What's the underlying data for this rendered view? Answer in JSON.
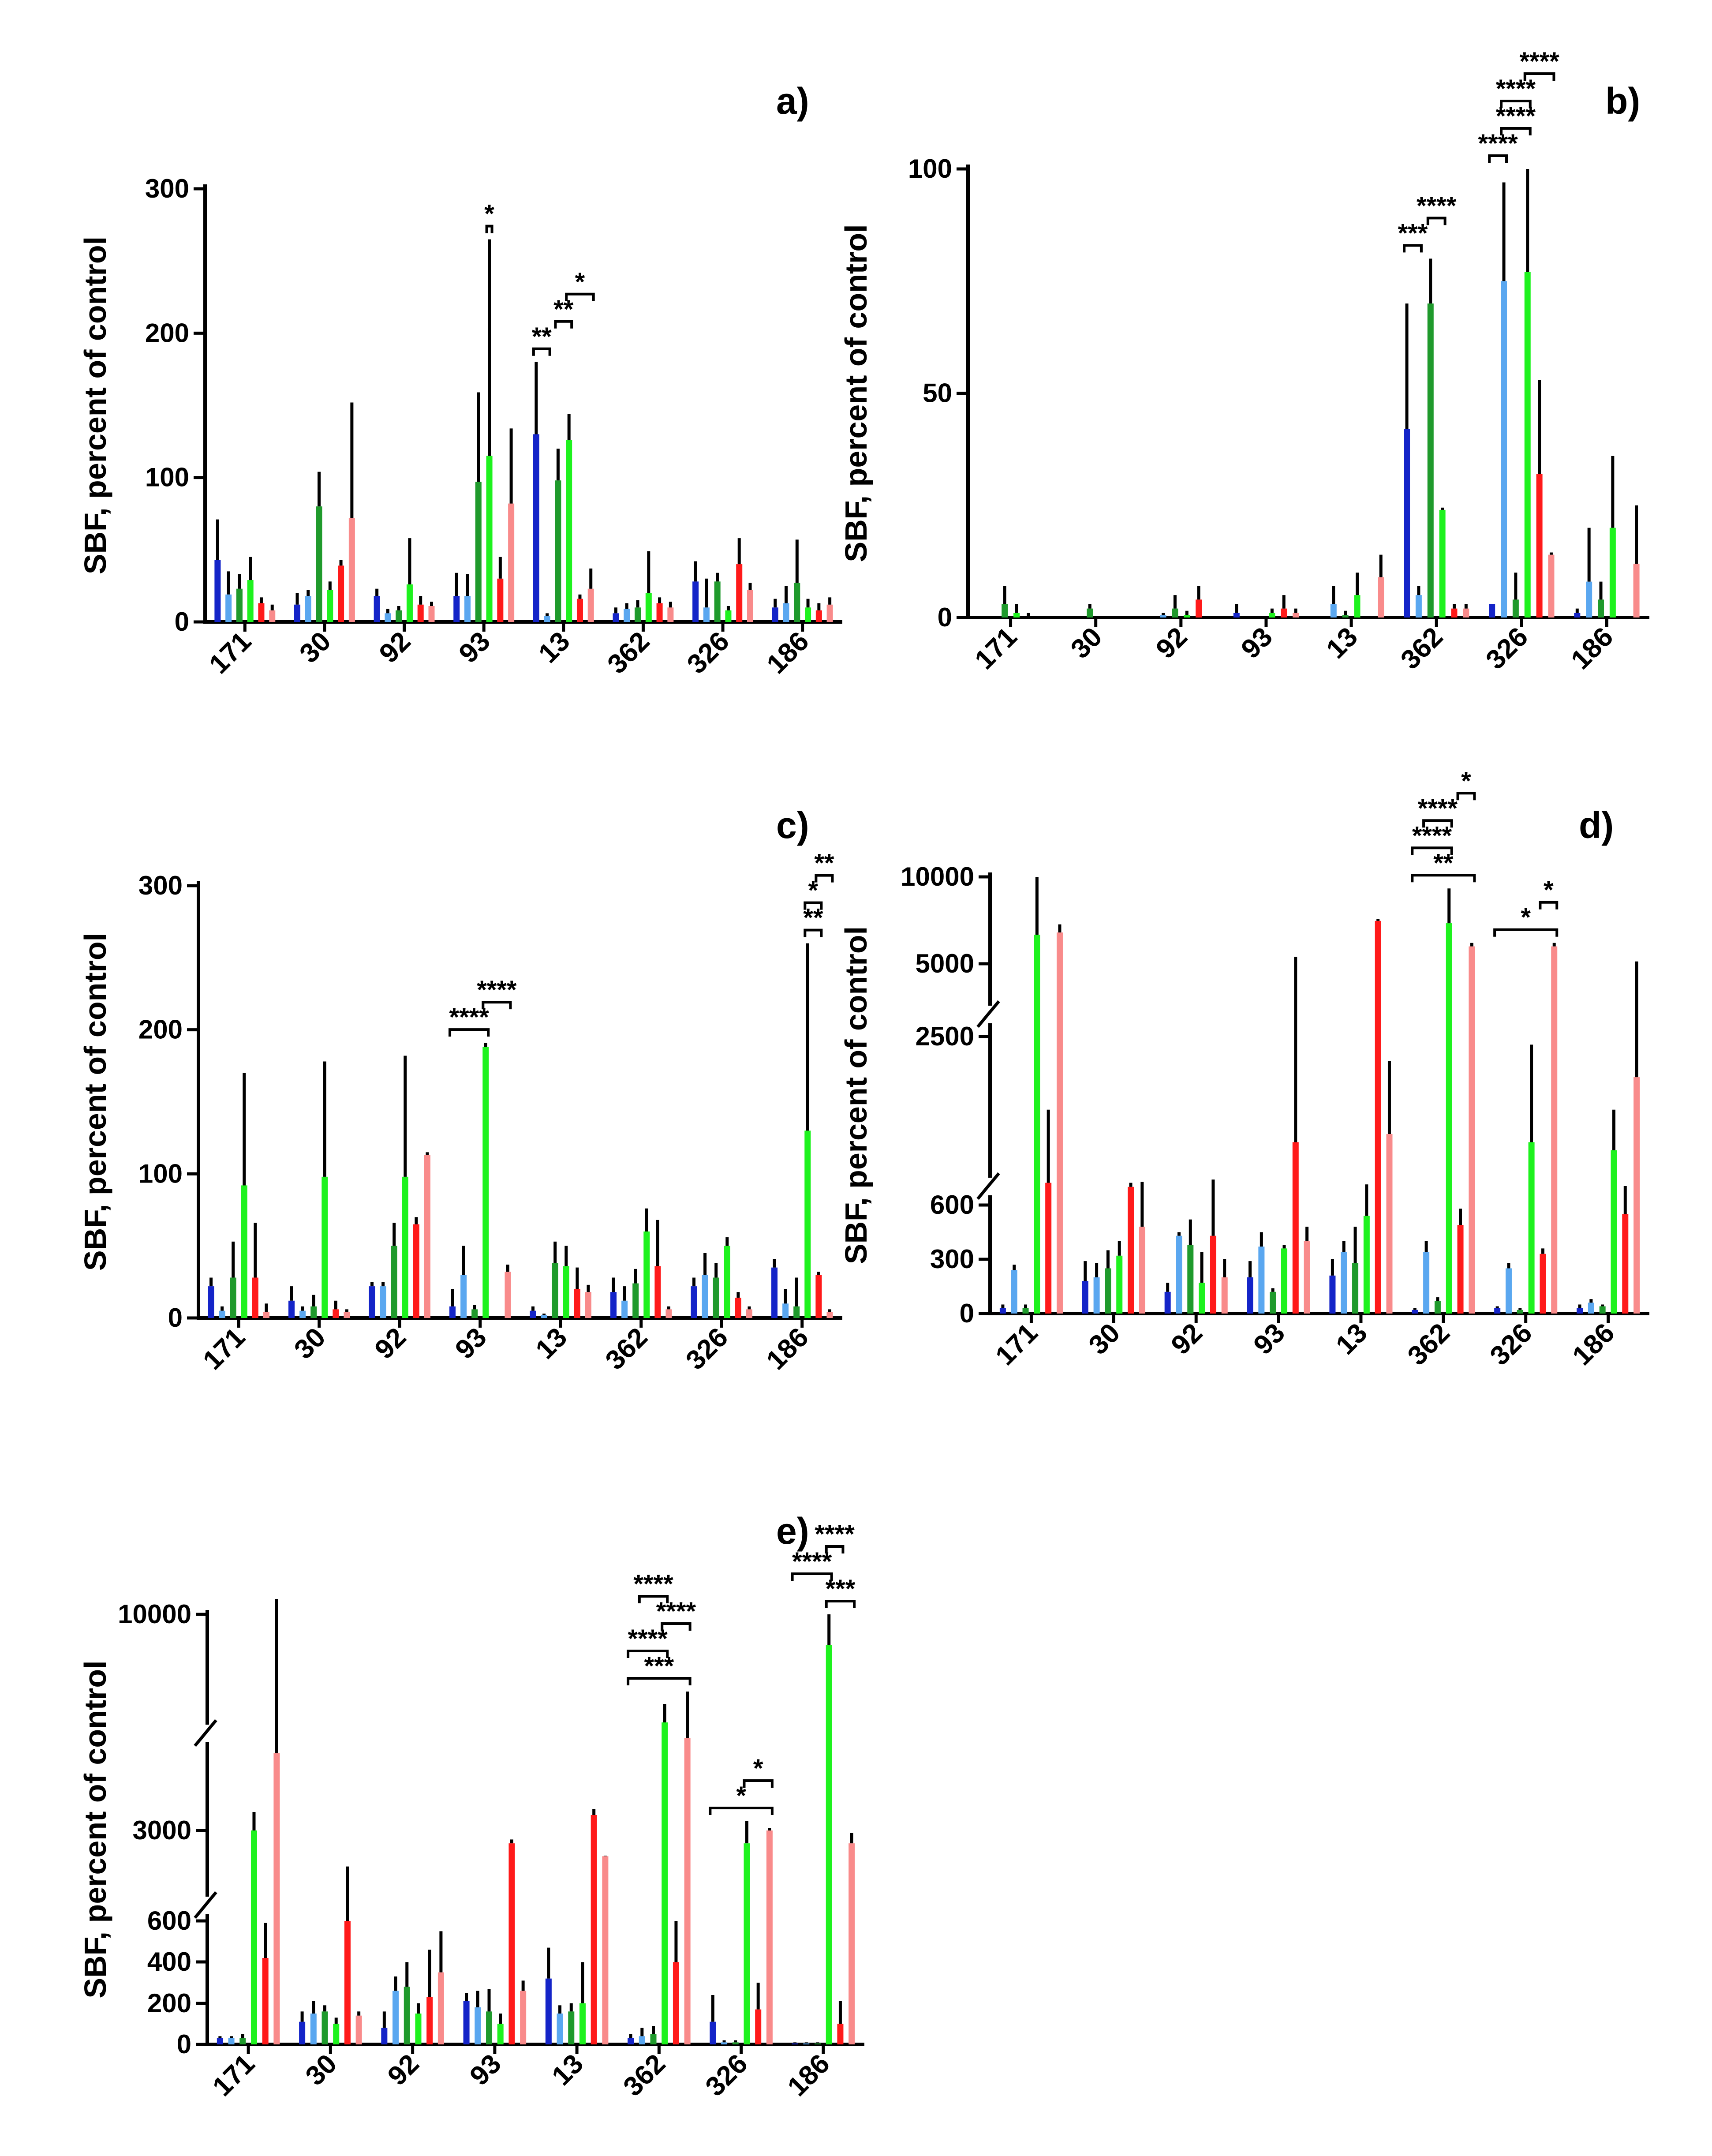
{
  "colors": {
    "dark_blue": "#1424c8",
    "light_blue": "#5aa7f0",
    "dark_green": "#1f9a2c",
    "light_green": "#1ef21e",
    "red": "#ff1a1a",
    "pink": "#f98b8b",
    "error": "#000000"
  },
  "chart_data": [
    {
      "panel": "a)",
      "type": "bar",
      "ylabel": "SBF, percent of control",
      "categories": [
        "171",
        "30",
        "92",
        "93",
        "13",
        "362",
        "326",
        "186"
      ],
      "yticks": [
        "0",
        "100",
        "200",
        "300"
      ],
      "ylim": [
        0,
        300
      ],
      "series": [
        {
          "color": "#1424c8",
          "values": [
            43,
            12,
            18,
            18,
            130,
            6,
            28,
            10
          ],
          "errors": [
            28,
            8,
            5,
            16,
            50,
            4,
            14,
            6
          ]
        },
        {
          "color": "#5aa7f0",
          "values": [
            19,
            18,
            6,
            18,
            4,
            9,
            10,
            13
          ],
          "errors": [
            16,
            4,
            3,
            15,
            2,
            4,
            20,
            12
          ]
        },
        {
          "color": "#1f9a2c",
          "values": [
            23,
            80,
            8,
            97,
            98,
            10,
            28,
            27
          ],
          "errors": [
            10,
            24,
            3,
            62,
            22,
            5,
            6,
            30
          ]
        },
        {
          "color": "#1ef21e",
          "values": [
            29,
            22,
            26,
            115,
            126,
            20,
            8,
            10
          ],
          "errors": [
            16,
            6,
            32,
            150,
            18,
            29,
            3,
            6
          ]
        },
        {
          "color": "#ff1a1a",
          "values": [
            13,
            39,
            12,
            30,
            16,
            13,
            40,
            8
          ],
          "errors": [
            4,
            4,
            6,
            15,
            3,
            4,
            18,
            5
          ]
        },
        {
          "color": "#f98b8b",
          "values": [
            8,
            72,
            11,
            82,
            23,
            10,
            22,
            12
          ],
          "errors": [
            4,
            80,
            3,
            52,
            14,
            4,
            5,
            5
          ]
        }
      ],
      "significance": [
        {
          "label": "*",
          "group": 3,
          "from": 3,
          "to": 3
        },
        {
          "label": "**",
          "group": 4,
          "from": 0,
          "to": 1
        },
        {
          "label": "**",
          "group": 4,
          "from": 2,
          "to": 3
        },
        {
          "label": "*",
          "group": 4,
          "from": 3,
          "to": 5
        }
      ]
    },
    {
      "panel": "b)",
      "type": "bar",
      "ylabel": "SBF, percent of control",
      "categories": [
        "171",
        "30",
        "92",
        "93",
        "13",
        "362",
        "326",
        "186"
      ],
      "yticks": [
        "0",
        "50",
        "100"
      ],
      "ylim": [
        0,
        100
      ],
      "series": [
        {
          "color": "#1424c8",
          "values": [
            0,
            0,
            0,
            1,
            0,
            42,
            3,
            1
          ],
          "errors": [
            0,
            0,
            0,
            2,
            0,
            28,
            0,
            1
          ]
        },
        {
          "color": "#5aa7f0",
          "values": [
            0,
            0,
            0.5,
            0,
            3,
            5,
            75,
            8
          ],
          "errors": [
            0,
            0,
            0.5,
            0,
            4,
            2,
            22,
            12
          ]
        },
        {
          "color": "#1f9a2c",
          "values": [
            3,
            2,
            2,
            0,
            0.5,
            70,
            4,
            4
          ],
          "errors": [
            4,
            1,
            3,
            0,
            1,
            10,
            6,
            4
          ]
        },
        {
          "color": "#1ef21e",
          "values": [
            1,
            0,
            0.5,
            1,
            5,
            24,
            77,
            20
          ],
          "errors": [
            2,
            0,
            1,
            1,
            5,
            0.5,
            23,
            16
          ]
        },
        {
          "color": "#ff1a1a",
          "values": [
            0,
            0,
            4,
            2,
            0,
            2,
            32,
            0
          ],
          "errors": [
            1,
            0,
            3,
            3,
            0,
            1,
            21,
            0
          ]
        },
        {
          "color": "#f98b8b",
          "values": [
            0,
            0,
            0,
            1,
            9,
            2,
            14,
            12
          ],
          "errors": [
            0,
            0,
            0,
            1,
            5,
            1,
            0.5,
            13
          ]
        }
      ],
      "significance": [
        {
          "label": "***",
          "group": 5,
          "from": 0,
          "to": 1
        },
        {
          "label": "****",
          "group": 5,
          "from": 2,
          "to": 3
        },
        {
          "label": "****",
          "group": 6,
          "from": 0,
          "to": 1
        },
        {
          "label": "****",
          "group": 6,
          "from": 1,
          "to": 3
        },
        {
          "label": "****",
          "group": 6,
          "from": 1,
          "to": 3
        },
        {
          "label": "****",
          "group": 6,
          "from": 3,
          "to": 5
        }
      ]
    },
    {
      "panel": "c)",
      "type": "bar",
      "ylabel": "SBF, percent of control",
      "categories": [
        "171",
        "30",
        "92",
        "93",
        "13",
        "362",
        "326",
        "186"
      ],
      "yticks": [
        "0",
        "100",
        "200",
        "300"
      ],
      "ylim": [
        0,
        300
      ],
      "series": [
        {
          "color": "#1424c8",
          "values": [
            22,
            12,
            22,
            8,
            5,
            18,
            22,
            35
          ],
          "errors": [
            6,
            10,
            3,
            12,
            3,
            10,
            6,
            6
          ]
        },
        {
          "color": "#5aa7f0",
          "values": [
            5,
            5,
            22,
            30,
            2,
            12,
            30,
            10
          ],
          "errors": [
            3,
            3,
            3,
            20,
            1,
            10,
            15,
            10
          ]
        },
        {
          "color": "#1f9a2c",
          "values": [
            28,
            8,
            50,
            6,
            38,
            24,
            28,
            8
          ],
          "errors": [
            25,
            8,
            16,
            3,
            15,
            10,
            10,
            20
          ]
        },
        {
          "color": "#1ef21e",
          "values": [
            92,
            98,
            98,
            188,
            36,
            60,
            50,
            130
          ],
          "errors": [
            78,
            80,
            84,
            3,
            14,
            16,
            6,
            130
          ]
        },
        {
          "color": "#ff1a1a",
          "values": [
            28,
            6,
            65,
            0,
            20,
            36,
            14,
            30
          ],
          "errors": [
            38,
            6,
            5,
            0,
            15,
            32,
            4,
            2
          ]
        },
        {
          "color": "#f98b8b",
          "values": [
            4,
            4,
            113,
            32,
            18,
            6,
            6,
            4
          ],
          "errors": [
            6,
            2,
            2,
            5,
            5,
            2,
            2,
            2
          ]
        }
      ],
      "significance": [
        {
          "label": "****",
          "group": 3,
          "from": 0,
          "to": 3
        },
        {
          "label": "****",
          "group": 3,
          "from": 3,
          "to": 5
        },
        {
          "label": "**",
          "group": 7,
          "from": 3,
          "to": 4
        },
        {
          "label": "*",
          "group": 7,
          "from": 3,
          "to": 4
        },
        {
          "label": "**",
          "group": 7,
          "from": 4,
          "to": 5
        }
      ]
    },
    {
      "panel": "d)",
      "type": "bar",
      "broken_axis": true,
      "ylabel": "SBF, percent of control",
      "categories": [
        "171",
        "30",
        "92",
        "93",
        "13",
        "362",
        "326",
        "186"
      ],
      "yticks": [
        "0",
        "300",
        "600",
        "2500",
        "5000",
        "10000"
      ],
      "series": [
        {
          "color": "#1424c8",
          "values": [
            30,
            180,
            120,
            200,
            210,
            20,
            30,
            30
          ],
          "errors": [
            20,
            110,
            50,
            90,
            90,
            10,
            10,
            20
          ]
        },
        {
          "color": "#5aa7f0",
          "values": [
            240,
            200,
            430,
            370,
            340,
            340,
            250,
            60
          ],
          "errors": [
            30,
            80,
            20,
            80,
            60,
            60,
            30,
            20
          ]
        },
        {
          "color": "#1f9a2c",
          "values": [
            30,
            250,
            380,
            120,
            280,
            70,
            20,
            40
          ],
          "errors": [
            20,
            100,
            140,
            20,
            200,
            20,
            10,
            10
          ]
        },
        {
          "color": "#1ef21e",
          "values": [
            5000,
            320,
            170,
            360,
            540,
            6000,
            1200,
            1100
          ],
          "errors": [
            5000,
            80,
            170,
            20,
            140,
            3000,
            1200,
            500
          ]
        },
        {
          "color": "#ff1a1a",
          "values": [
            700,
            650,
            430,
            1200,
            6200,
            490,
            330,
            550
          ],
          "errors": [
            900,
            50,
            310,
            1900,
            150,
            90,
            30,
            110
          ]
        },
        {
          "color": "#f98b8b",
          "values": [
            5200,
            480,
            200,
            400,
            1300,
            4000,
            4000,
            2000
          ],
          "errors": [
            700,
            230,
            100,
            80,
            900,
            300,
            300,
            700
          ]
        }
      ],
      "significance": [
        {
          "label": "**",
          "group": 5,
          "from": 0,
          "to": 5
        },
        {
          "label": "****",
          "group": 5,
          "from": 0,
          "to": 3
        },
        {
          "label": "****",
          "group": 5,
          "from": 1,
          "to": 3
        },
        {
          "label": "*",
          "group": 5,
          "from": 4,
          "to": 5
        },
        {
          "label": "*",
          "group": 6,
          "from": 0,
          "to": 5
        },
        {
          "label": "*",
          "group": 6,
          "from": 4,
          "to": 5
        }
      ]
    },
    {
      "panel": "e)",
      "type": "bar",
      "broken_axis": true,
      "ylabel": "SBF, percent of control",
      "categories": [
        "171",
        "30",
        "92",
        "93",
        "13",
        "362",
        "326",
        "186"
      ],
      "yticks": [
        "0",
        "200",
        "400",
        "600",
        "3000",
        "10000"
      ],
      "series": [
        {
          "color": "#1424c8",
          "values": [
            30,
            110,
            80,
            210,
            320,
            30,
            110,
            5
          ],
          "errors": [
            10,
            50,
            80,
            40,
            150,
            20,
            130,
            5
          ]
        },
        {
          "color": "#5aa7f0",
          "values": [
            30,
            150,
            260,
            180,
            150,
            40,
            10,
            5
          ],
          "errors": [
            10,
            60,
            70,
            80,
            40,
            40,
            10,
            5
          ]
        },
        {
          "color": "#1f9a2c",
          "values": [
            30,
            160,
            280,
            160,
            160,
            50,
            10,
            5
          ],
          "errors": [
            20,
            30,
            120,
            110,
            40,
            40,
            10,
            5
          ]
        },
        {
          "color": "#1ef21e",
          "values": [
            3000,
            100,
            150,
            100,
            200,
            6500,
            2500,
            9000
          ],
          "errors": [
            600,
            30,
            50,
            50,
            200,
            600,
            800,
            1000
          ]
        },
        {
          "color": "#ff1a1a",
          "values": [
            420,
            600,
            230,
            2500,
            3500,
            400,
            170,
            100
          ],
          "errors": [
            170,
            1000,
            230,
            150,
            200,
            200,
            130,
            110
          ]
        },
        {
          "color": "#f98b8b",
          "values": [
            5500,
            140,
            350,
            260,
            2000,
            6000,
            3000,
            2500
          ],
          "errors": [
            5000,
            20,
            200,
            50,
            20,
            1500,
            80,
            400
          ]
        }
      ],
      "significance": [
        {
          "label": "***",
          "group": 5,
          "from": 0,
          "to": 5
        },
        {
          "label": "****",
          "group": 5,
          "from": 0,
          "to": 3
        },
        {
          "label": "****",
          "group": 5,
          "from": 3,
          "to": 5
        },
        {
          "label": "****",
          "group": 5,
          "from": 1,
          "to": 3
        },
        {
          "label": "*",
          "group": 6,
          "from": 0,
          "to": 5
        },
        {
          "label": "*",
          "group": 6,
          "from": 3,
          "to": 5
        },
        {
          "label": "***",
          "group": 7,
          "from": 3,
          "to": 5
        },
        {
          "label": "****",
          "group": 7,
          "from": 0,
          "to": 3
        },
        {
          "label": "****",
          "group": 7,
          "from": 3,
          "to": 4
        }
      ]
    }
  ]
}
